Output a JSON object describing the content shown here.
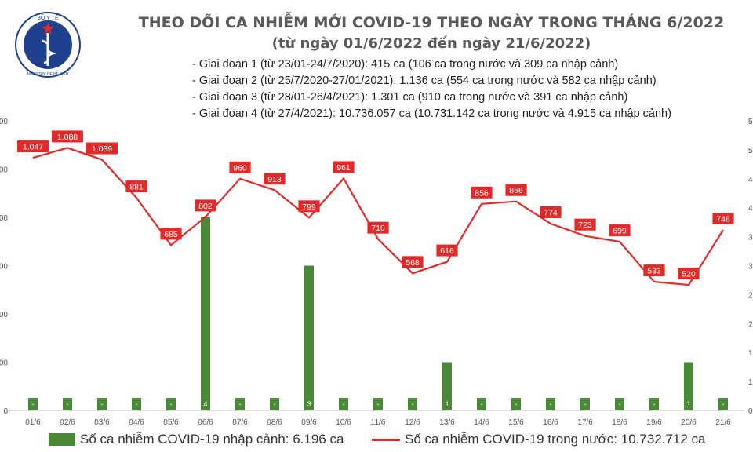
{
  "header": {
    "title": "THEO DÕI CA NHIỄM MỚI COVID-19 THEO NGÀY TRONG THÁNG 6/2022",
    "subtitle": "(từ ngày 01/6/2022 đến ngày 21/6/2022)",
    "logo_top_text": "BỘ Y TẾ",
    "logo_bottom_text": "MINISTRY OF HEALTH"
  },
  "phases": [
    "- Giai đoạn 1 (từ 23/01-24/7/2020): 415 ca (106 ca trong nước và 309 ca nhập cảnh)",
    "- Giai đoạn 2 (từ 25/7/2020-27/01/2021): 1.136 ca (554 ca trong nước và 582 ca nhập cảnh)",
    "- Giai đoạn 3 (từ 28/01-26/4/2021): 1.301 ca (910 ca trong nước và 391 ca nhập cảnh)",
    "- Giai đoạn 4 (từ 27/4/2021): 10.736.057 ca (10.731.142 ca trong nước và 4.915 ca nhập cảnh)"
  ],
  "legend": {
    "bar_label": "Số ca nhiễm COVID-19 nhập cảnh: 6.196 ca",
    "line_label": "Số ca nhiễm COVID-19 trong nước: 10.732.712 ca"
  },
  "colors": {
    "bar": "#4a8a36",
    "line": "#e32a2a",
    "label_box": "#e32a2a"
  },
  "chart_data": {
    "type": "bar+line",
    "categories": [
      "01/6",
      "02/6",
      "03/6",
      "04/6",
      "05/6",
      "06/6",
      "07/6",
      "08/6",
      "09/6",
      "10/6",
      "11/6",
      "12/6",
      "13/6",
      "14/6",
      "15/6",
      "16/6",
      "17/6",
      "18/6",
      "19/6",
      "20/6",
      "21/6"
    ],
    "line_series": {
      "values": [
        1047,
        1088,
        1039,
        881,
        685,
        802,
        960,
        913,
        799,
        961,
        710,
        568,
        616,
        856,
        866,
        774,
        723,
        699,
        533,
        520,
        748
      ],
      "labels": [
        "1.047",
        "1.088",
        "1.039",
        "881",
        "685",
        "802",
        "960",
        "913",
        "799",
        "961",
        "710",
        "568",
        "616",
        "856",
        "866",
        "774",
        "723",
        "699",
        "533",
        "520",
        "748"
      ],
      "ylim": [
        0,
        1200
      ]
    },
    "bar_series": {
      "values": [
        0,
        0,
        0,
        0,
        0,
        4,
        0,
        0,
        3,
        0,
        0,
        0,
        1,
        0,
        0,
        0,
        0,
        0,
        0,
        1,
        0
      ],
      "labels": [
        "-",
        "-",
        "-",
        "-",
        "-",
        "4",
        "-",
        "-",
        "3",
        "-",
        "-",
        "-",
        "1",
        "-",
        "-",
        "-",
        "-",
        "-",
        "-",
        "1",
        "-"
      ],
      "ylim": [
        0,
        6
      ]
    },
    "left_ticks": [
      "00",
      "00",
      "00",
      "00",
      "00",
      "00",
      "0"
    ],
    "right_ticks": [
      "5",
      "5",
      "4",
      "4",
      "3",
      "3",
      "2",
      "2",
      "1",
      "1",
      "0"
    ],
    "grid": false
  }
}
